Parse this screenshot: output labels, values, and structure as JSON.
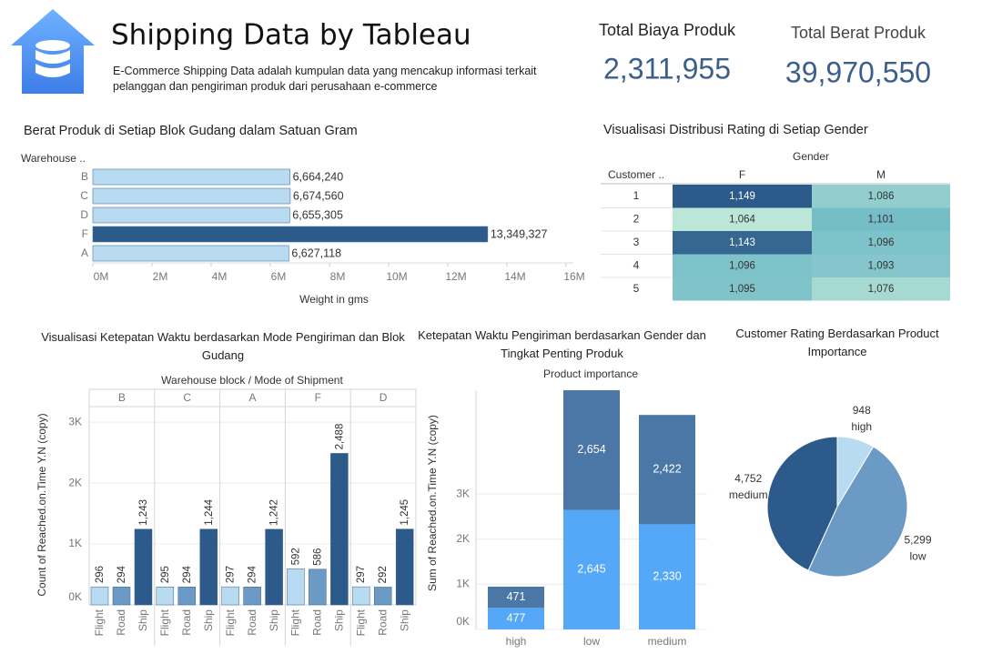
{
  "header": {
    "title": "Shipping Data by Tableau",
    "description": "E-Commerce Shipping Data adalah kumpulan data yang mencakup informasi terkait pelanggan dan pengiriman produk dari perusahaan e-commerce"
  },
  "kpis": [
    {
      "label": "Total Biaya Produk",
      "value": "2,311,955"
    },
    {
      "label": "Total Berat Produk",
      "value": "39,970,550"
    }
  ],
  "chart_data": [
    {
      "type": "hbar",
      "title": "Berat Produk di Setiap Blok Gudang dalam Satuan Gram",
      "y_label": "Warehouse ..",
      "x_label": "Weight in gms",
      "categories": [
        "B",
        "C",
        "D",
        "F",
        "A"
      ],
      "values": [
        6664240,
        6674560,
        6655305,
        13349327,
        6627118
      ],
      "value_labels": [
        "6,664,240",
        "6,674,560",
        "6,655,305",
        "13,349,327",
        "6,627,118"
      ],
      "colors": [
        "#b9dbf2",
        "#b9dbf2",
        "#b9dbf2",
        "#2c5a8a",
        "#b9dbf2"
      ],
      "xlim": [
        0,
        16000000
      ],
      "xticks": [
        {
          "value": 0,
          "label": "0M"
        },
        {
          "value": 2000000,
          "label": "2M"
        },
        {
          "value": 4000000,
          "label": "4M"
        },
        {
          "value": 6000000,
          "label": "6M"
        },
        {
          "value": 8000000,
          "label": "8M"
        },
        {
          "value": 10000000,
          "label": "10M"
        },
        {
          "value": 12000000,
          "label": "12M"
        },
        {
          "value": 14000000,
          "label": "14M"
        },
        {
          "value": 16000000,
          "label": "16M"
        }
      ]
    },
    {
      "type": "heatmap",
      "title": "Visualisasi Distribusi Rating di Setiap Gender",
      "column_header": "Gender",
      "row_header": "Customer ..",
      "columns": [
        "F",
        "M"
      ],
      "categories": [
        "1",
        "2",
        "3",
        "4",
        "5"
      ],
      "values": [
        [
          1149,
          1086
        ],
        [
          1064,
          1101
        ],
        [
          1143,
          1096
        ],
        [
          1096,
          1093
        ],
        [
          1095,
          1076
        ]
      ],
      "value_labels": [
        [
          "1,149",
          "1,086"
        ],
        [
          "1,064",
          "1,101"
        ],
        [
          "1,143",
          "1,096"
        ],
        [
          "1,096",
          "1,093"
        ],
        [
          "1,095",
          "1,076"
        ]
      ],
      "color_scale": [
        "#bce6d7",
        "#6ab7c5",
        "#2c5a8a"
      ]
    },
    {
      "type": "grouped_bar",
      "title": "Visualisasi Ketepatan Waktu berdasarkan Mode Pengiriman dan Blok Gudang",
      "facet_header": "Warehouse block  /  Mode of Shipment",
      "y_label": "Count of Reached.on.Time Y.N (copy)",
      "categories": [
        "B",
        "C",
        "A",
        "F",
        "D"
      ],
      "series": [
        {
          "name": "Flight",
          "color": "#b9dbf2",
          "values": [
            296,
            295,
            297,
            592,
            297
          ]
        },
        {
          "name": "Road",
          "color": "#6b9ac4",
          "values": [
            294,
            294,
            294,
            586,
            292
          ]
        },
        {
          "name": "Ship",
          "color": "#2c5a8a",
          "values": [
            1243,
            1244,
            1242,
            2488,
            1245
          ],
          "value_labels": [
            "1,243",
            "1,244",
            "1,242",
            "2,488",
            "1,245"
          ]
        }
      ],
      "ylim": [
        0,
        3540
      ],
      "yticks": [
        {
          "value": 0,
          "label": "0K"
        },
        {
          "value": 1000,
          "label": "1K"
        },
        {
          "value": 2000,
          "label": "2K"
        },
        {
          "value": 3000,
          "label": "3K"
        }
      ],
      "grid": true
    },
    {
      "type": "stacked_bar",
      "title": "Ketepatan Waktu Pengiriman berdasarkan Gender dan Tingkat Penting Produk",
      "facet_header": "Product importance",
      "y_label": "Sum of Reached.on.Time Y.N (copy)",
      "categories": [
        "high",
        "low",
        "medium"
      ],
      "series": [
        {
          "color": "#55a7f7",
          "values": [
            477,
            2645,
            2330
          ],
          "value_labels": [
            "477",
            "2,645",
            "2,330"
          ]
        },
        {
          "color": "#4a77a6",
          "values": [
            471,
            2654,
            2422
          ],
          "value_labels": [
            "471",
            "2,654",
            "2,422"
          ]
        }
      ],
      "ylim": [
        0,
        5300
      ],
      "yticks": [
        {
          "value": 0,
          "label": "0K"
        },
        {
          "value": 1000,
          "label": "1K"
        },
        {
          "value": 2000,
          "label": "2K"
        },
        {
          "value": 3000,
          "label": "3K"
        }
      ],
      "grid": true
    },
    {
      "type": "pie",
      "title": "Customer Rating Berdasarkan Product Importance",
      "categories": [
        "high",
        "low",
        "medium"
      ],
      "values": [
        948,
        5299,
        4752
      ],
      "value_labels": [
        "948",
        "5,299",
        "4,752"
      ],
      "colors": [
        "#b9dbf2",
        "#6b9ac4",
        "#2c5a8a"
      ]
    }
  ]
}
